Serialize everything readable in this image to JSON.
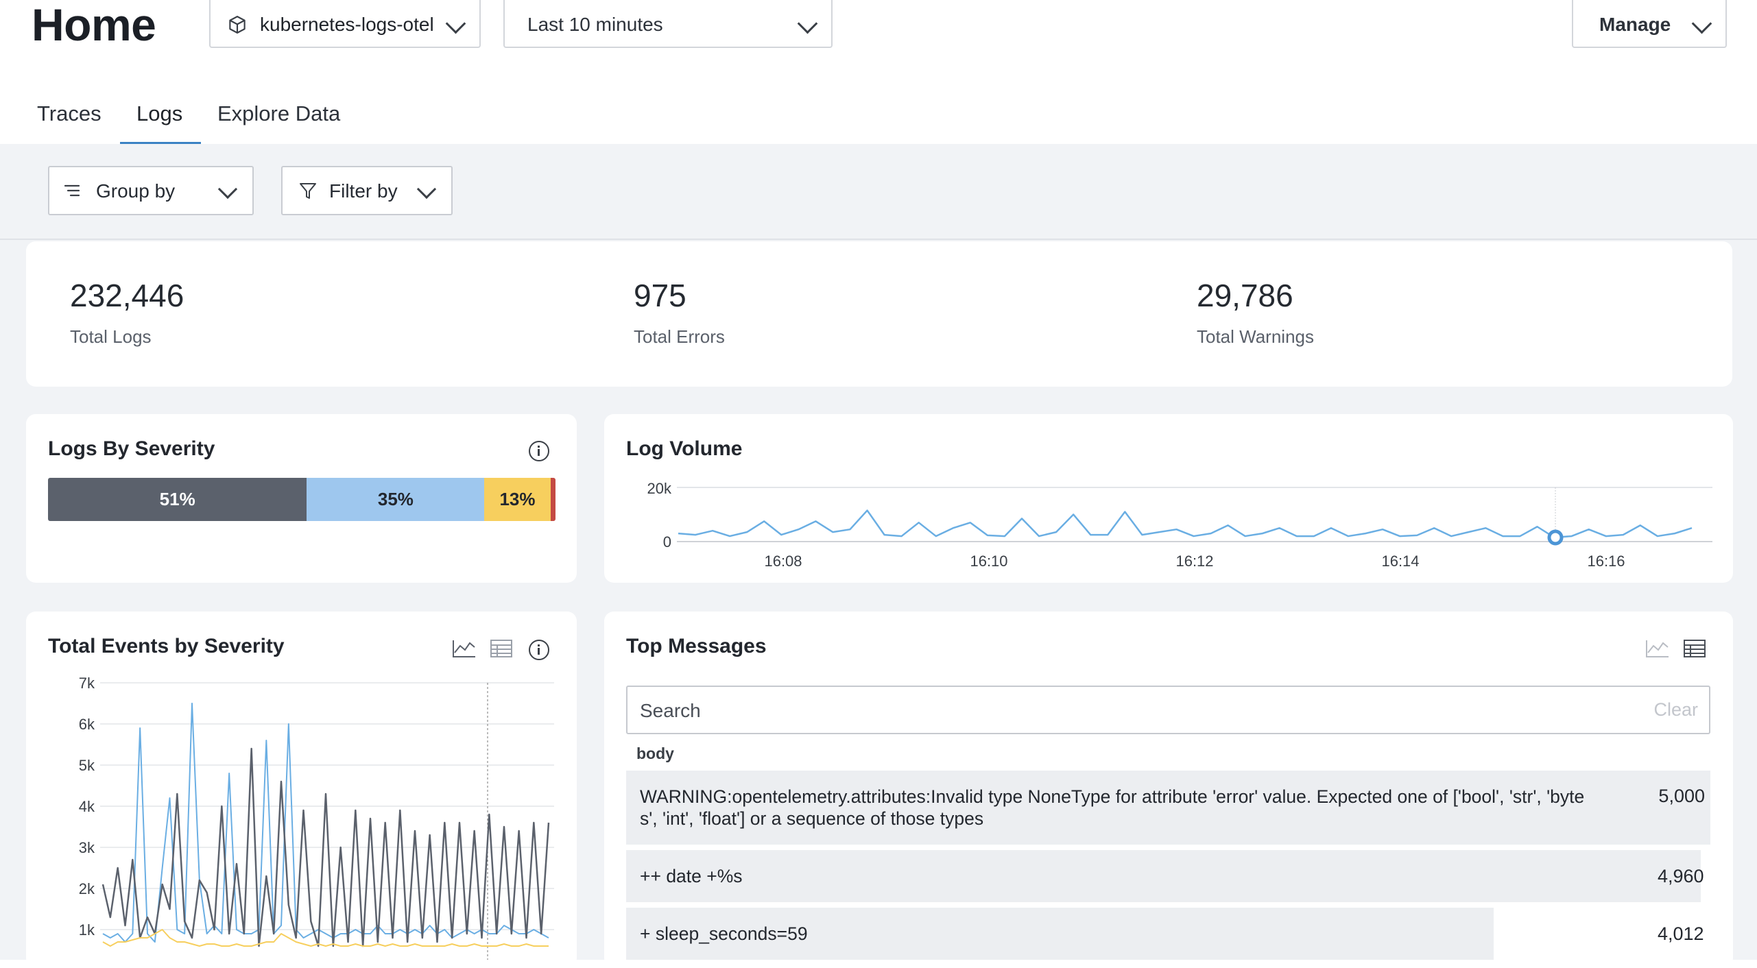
{
  "header": {
    "title": "Home",
    "dataset": "kubernetes-logs-otel",
    "time_range": "Last 10 minutes",
    "manage_label": "Manage"
  },
  "tabs": [
    {
      "label": "Traces"
    },
    {
      "label": "Logs",
      "active": true
    },
    {
      "label": "Explore Data"
    }
  ],
  "toolbar": {
    "group_by": "Group by",
    "filter_by": "Filter by"
  },
  "stats": [
    {
      "value": "232,446",
      "label": "Total Logs"
    },
    {
      "value": "975",
      "label": "Total Errors"
    },
    {
      "value": "29,786",
      "label": "Total Warnings"
    }
  ],
  "colors": {
    "info": "#5b616c",
    "debug": "#9ec7ee",
    "warn": "#f7cf5e",
    "error": "#c44a43",
    "line_blue": "#6aaee3",
    "accent": "#3b82c4"
  },
  "severity_card": {
    "title": "Logs By Severity",
    "segments": [
      {
        "label": "51%",
        "value": 51,
        "color": "#5b616c",
        "text_color": "#ffffff"
      },
      {
        "label": "35%",
        "value": 35,
        "color": "#9ec7ee",
        "text_color": "#23272e"
      },
      {
        "label": "13%",
        "value": 13,
        "color": "#f7cf5e",
        "text_color": "#23272e"
      },
      {
        "label": "",
        "value": 1,
        "color": "#c44a43",
        "text_color": "#ffffff"
      }
    ]
  },
  "volume_card": {
    "title": "Log Volume"
  },
  "events_card": {
    "title": "Total Events by Severity"
  },
  "messages_card": {
    "title": "Top Messages",
    "search_placeholder": "Search",
    "clear_label": "Clear",
    "column_header": "body",
    "rows": [
      {
        "text": "WARNING:opentelemetry.attributes:Invalid type NoneType for attribute 'error' value. Expected one of ['bool', 'str', 'byte s', 'int', 'float'] or a sequence of those types",
        "count": "5,000",
        "value": 5000
      },
      {
        "text": "++ date +%s",
        "count": "4,960",
        "value": 4960
      },
      {
        "text": "+ sleep_seconds=59",
        "count": "4,012",
        "value": 4012
      }
    ]
  },
  "chart_data": [
    {
      "type": "line",
      "title": "Log Volume",
      "x_ticks": [
        "16:08",
        "16:10",
        "16:12",
        "16:14",
        "16:16"
      ],
      "y_ticks": [
        "0",
        "20k"
      ],
      "ylim": [
        0,
        20000
      ],
      "series": [
        {
          "values": [
            2500,
            2000,
            3500,
            1500,
            3000,
            7000,
            2000,
            4000,
            7000,
            3000,
            4000,
            11000,
            2000,
            1500,
            6500,
            1500,
            4500,
            6500,
            1800,
            1500,
            8000,
            1500,
            3000,
            9500,
            2000,
            2000,
            10500,
            2000,
            3000,
            4000,
            1500,
            2500,
            5500,
            1500,
            2500,
            4500,
            1500,
            1500,
            4500,
            1500,
            2500,
            4000,
            1500,
            1800,
            4500,
            1500,
            3000,
            4500,
            1500,
            1500,
            5000,
            1000,
            1500,
            4000,
            1500,
            2000,
            5500,
            1500,
            2500,
            4500
          ]
        }
      ]
    },
    {
      "type": "line",
      "title": "Total Events by Severity",
      "y_ticks": [
        "1k",
        "2k",
        "3k",
        "4k",
        "5k",
        "6k",
        "7k"
      ],
      "ylim": [
        0,
        7000
      ],
      "series": [
        {
          "values": [
            2100,
            1300,
            2500,
            1100,
            2700,
            800,
            1300,
            900,
            2100,
            1500,
            4300,
            1200,
            800,
            2200,
            1900,
            1000,
            4000,
            900,
            2600,
            900,
            5400,
            600,
            2300,
            900,
            4600,
            1600,
            800,
            3900,
            1200,
            600,
            4300,
            600,
            3000,
            700,
            3900,
            600,
            3700,
            700,
            3600,
            800,
            3900,
            700,
            3400,
            800,
            3300,
            700,
            3600,
            800,
            3600,
            900,
            3400,
            800,
            3800,
            900,
            3500,
            900,
            3400,
            800,
            3600,
            900,
            3600
          ]
        },
        {
          "values": [
            900,
            800,
            900,
            700,
            900,
            5900,
            900,
            700,
            2500,
            4200,
            1000,
            900,
            6500,
            2200,
            900,
            1100,
            900,
            4800,
            1000,
            900,
            900,
            1000,
            5600,
            900,
            1100,
            6000,
            1000,
            800,
            900,
            1000,
            900,
            800,
            900,
            900,
            1000,
            900,
            900,
            1100,
            900,
            900,
            1000,
            900,
            1000,
            900,
            1100,
            900,
            1000,
            800,
            900,
            1000,
            900,
            1000,
            900,
            900,
            1100,
            1000,
            900,
            900,
            1000,
            900,
            800
          ]
        },
        {
          "values": [
            700,
            600,
            700,
            700,
            750,
            800,
            800,
            900,
            1000,
            800,
            700,
            700,
            650,
            600,
            650,
            650,
            600,
            600,
            650,
            600,
            600,
            650,
            700,
            700,
            900,
            800,
            700,
            650,
            600,
            650,
            600,
            650,
            600,
            600,
            650,
            600,
            600,
            650,
            600,
            650,
            600,
            600,
            650,
            600,
            600,
            600,
            600,
            650,
            600,
            600,
            650,
            600,
            600,
            600,
            650,
            600,
            600,
            650,
            600,
            600,
            600
          ]
        }
      ]
    }
  ]
}
